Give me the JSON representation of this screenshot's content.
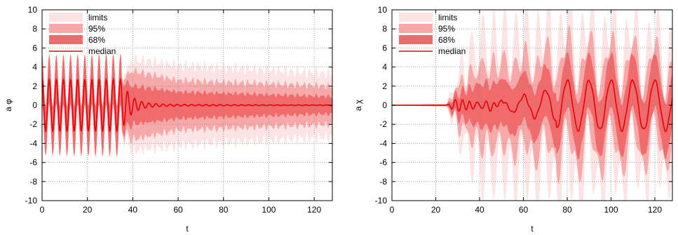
{
  "colors": {
    "limits": "#fde4e4",
    "p95": "#f7a9a9",
    "p68": "#f06b6b",
    "median": "#e8000b",
    "grid": "#8a8a8a",
    "axis": "#000000"
  },
  "chart_data": [
    {
      "type": "area",
      "xlabel": "t",
      "ylabel": "a φ",
      "xlim": [
        0,
        128
      ],
      "ylim": [
        -10,
        10
      ],
      "xticks": [
        "0",
        "20",
        "40",
        "60",
        "80",
        "100",
        "120"
      ],
      "xtick_values": [
        0,
        20,
        40,
        60,
        80,
        100,
        120
      ],
      "yticks": [
        "-10",
        "-8",
        "-6",
        "-4",
        "-2",
        "0",
        "2",
        "4",
        "6",
        "8",
        "10"
      ],
      "ytick_values": [
        -10,
        -8,
        -6,
        -4,
        -2,
        0,
        2,
        4,
        6,
        8,
        10
      ],
      "grid": true,
      "legend_position": "top-left",
      "legend": [
        "limits",
        "95%",
        "68%",
        "median"
      ],
      "series_model": {
        "median": "2.7*cos(2.0*t) for t<35, decaying oscillation to ~0 afterwards",
        "limits_halfwidth": [
          [
            0,
            2.7
          ],
          [
            35,
            2.8
          ],
          [
            40,
            4.8
          ],
          [
            60,
            4.2
          ],
          [
            128,
            3.3
          ]
        ],
        "p95_halfwidth": [
          [
            0,
            2.6
          ],
          [
            35,
            2.7
          ],
          [
            40,
            3.6
          ],
          [
            60,
            2.6
          ],
          [
            128,
            2.0
          ]
        ],
        "p68_halfwidth": [
          [
            0,
            2.5
          ],
          [
            35,
            2.6
          ],
          [
            40,
            2.0
          ],
          [
            60,
            1.4
          ],
          [
            128,
            0.9
          ]
        ]
      }
    },
    {
      "type": "area",
      "xlabel": "t",
      "ylabel": "a χ",
      "xlim": [
        0,
        128
      ],
      "ylim": [
        -10,
        10
      ],
      "xticks": [
        "0",
        "20",
        "40",
        "60",
        "80",
        "100",
        "120"
      ],
      "xtick_values": [
        0,
        20,
        40,
        60,
        80,
        100,
        120
      ],
      "yticks": [
        "-10",
        "-8",
        "-6",
        "-4",
        "-2",
        "0",
        "2",
        "4",
        "6",
        "8",
        "10"
      ],
      "ytick_values": [
        -10,
        -8,
        -6,
        -4,
        -2,
        0,
        2,
        4,
        6,
        8,
        10
      ],
      "grid": true,
      "legend_position": "top-left",
      "legend": [
        "limits",
        "95%",
        "68%",
        "median"
      ],
      "series_model": {
        "median": "0 for t<25, small oscillations 25-50, growing slow oscillation (period ~10) to amplitude ~2.5 by t=128",
        "limits_halfwidth": [
          [
            0,
            0.05
          ],
          [
            25,
            0.1
          ],
          [
            30,
            4
          ],
          [
            40,
            9
          ],
          [
            80,
            10
          ],
          [
            128,
            8
          ]
        ],
        "p95_halfwidth": [
          [
            0,
            0.05
          ],
          [
            25,
            0.1
          ],
          [
            30,
            2.5
          ],
          [
            40,
            5
          ],
          [
            80,
            6
          ],
          [
            128,
            5
          ]
        ],
        "p68_halfwidth": [
          [
            0,
            0.05
          ],
          [
            25,
            0.1
          ],
          [
            30,
            1.2
          ],
          [
            40,
            2.2
          ],
          [
            80,
            2.8
          ],
          [
            128,
            2.8
          ]
        ]
      }
    }
  ]
}
